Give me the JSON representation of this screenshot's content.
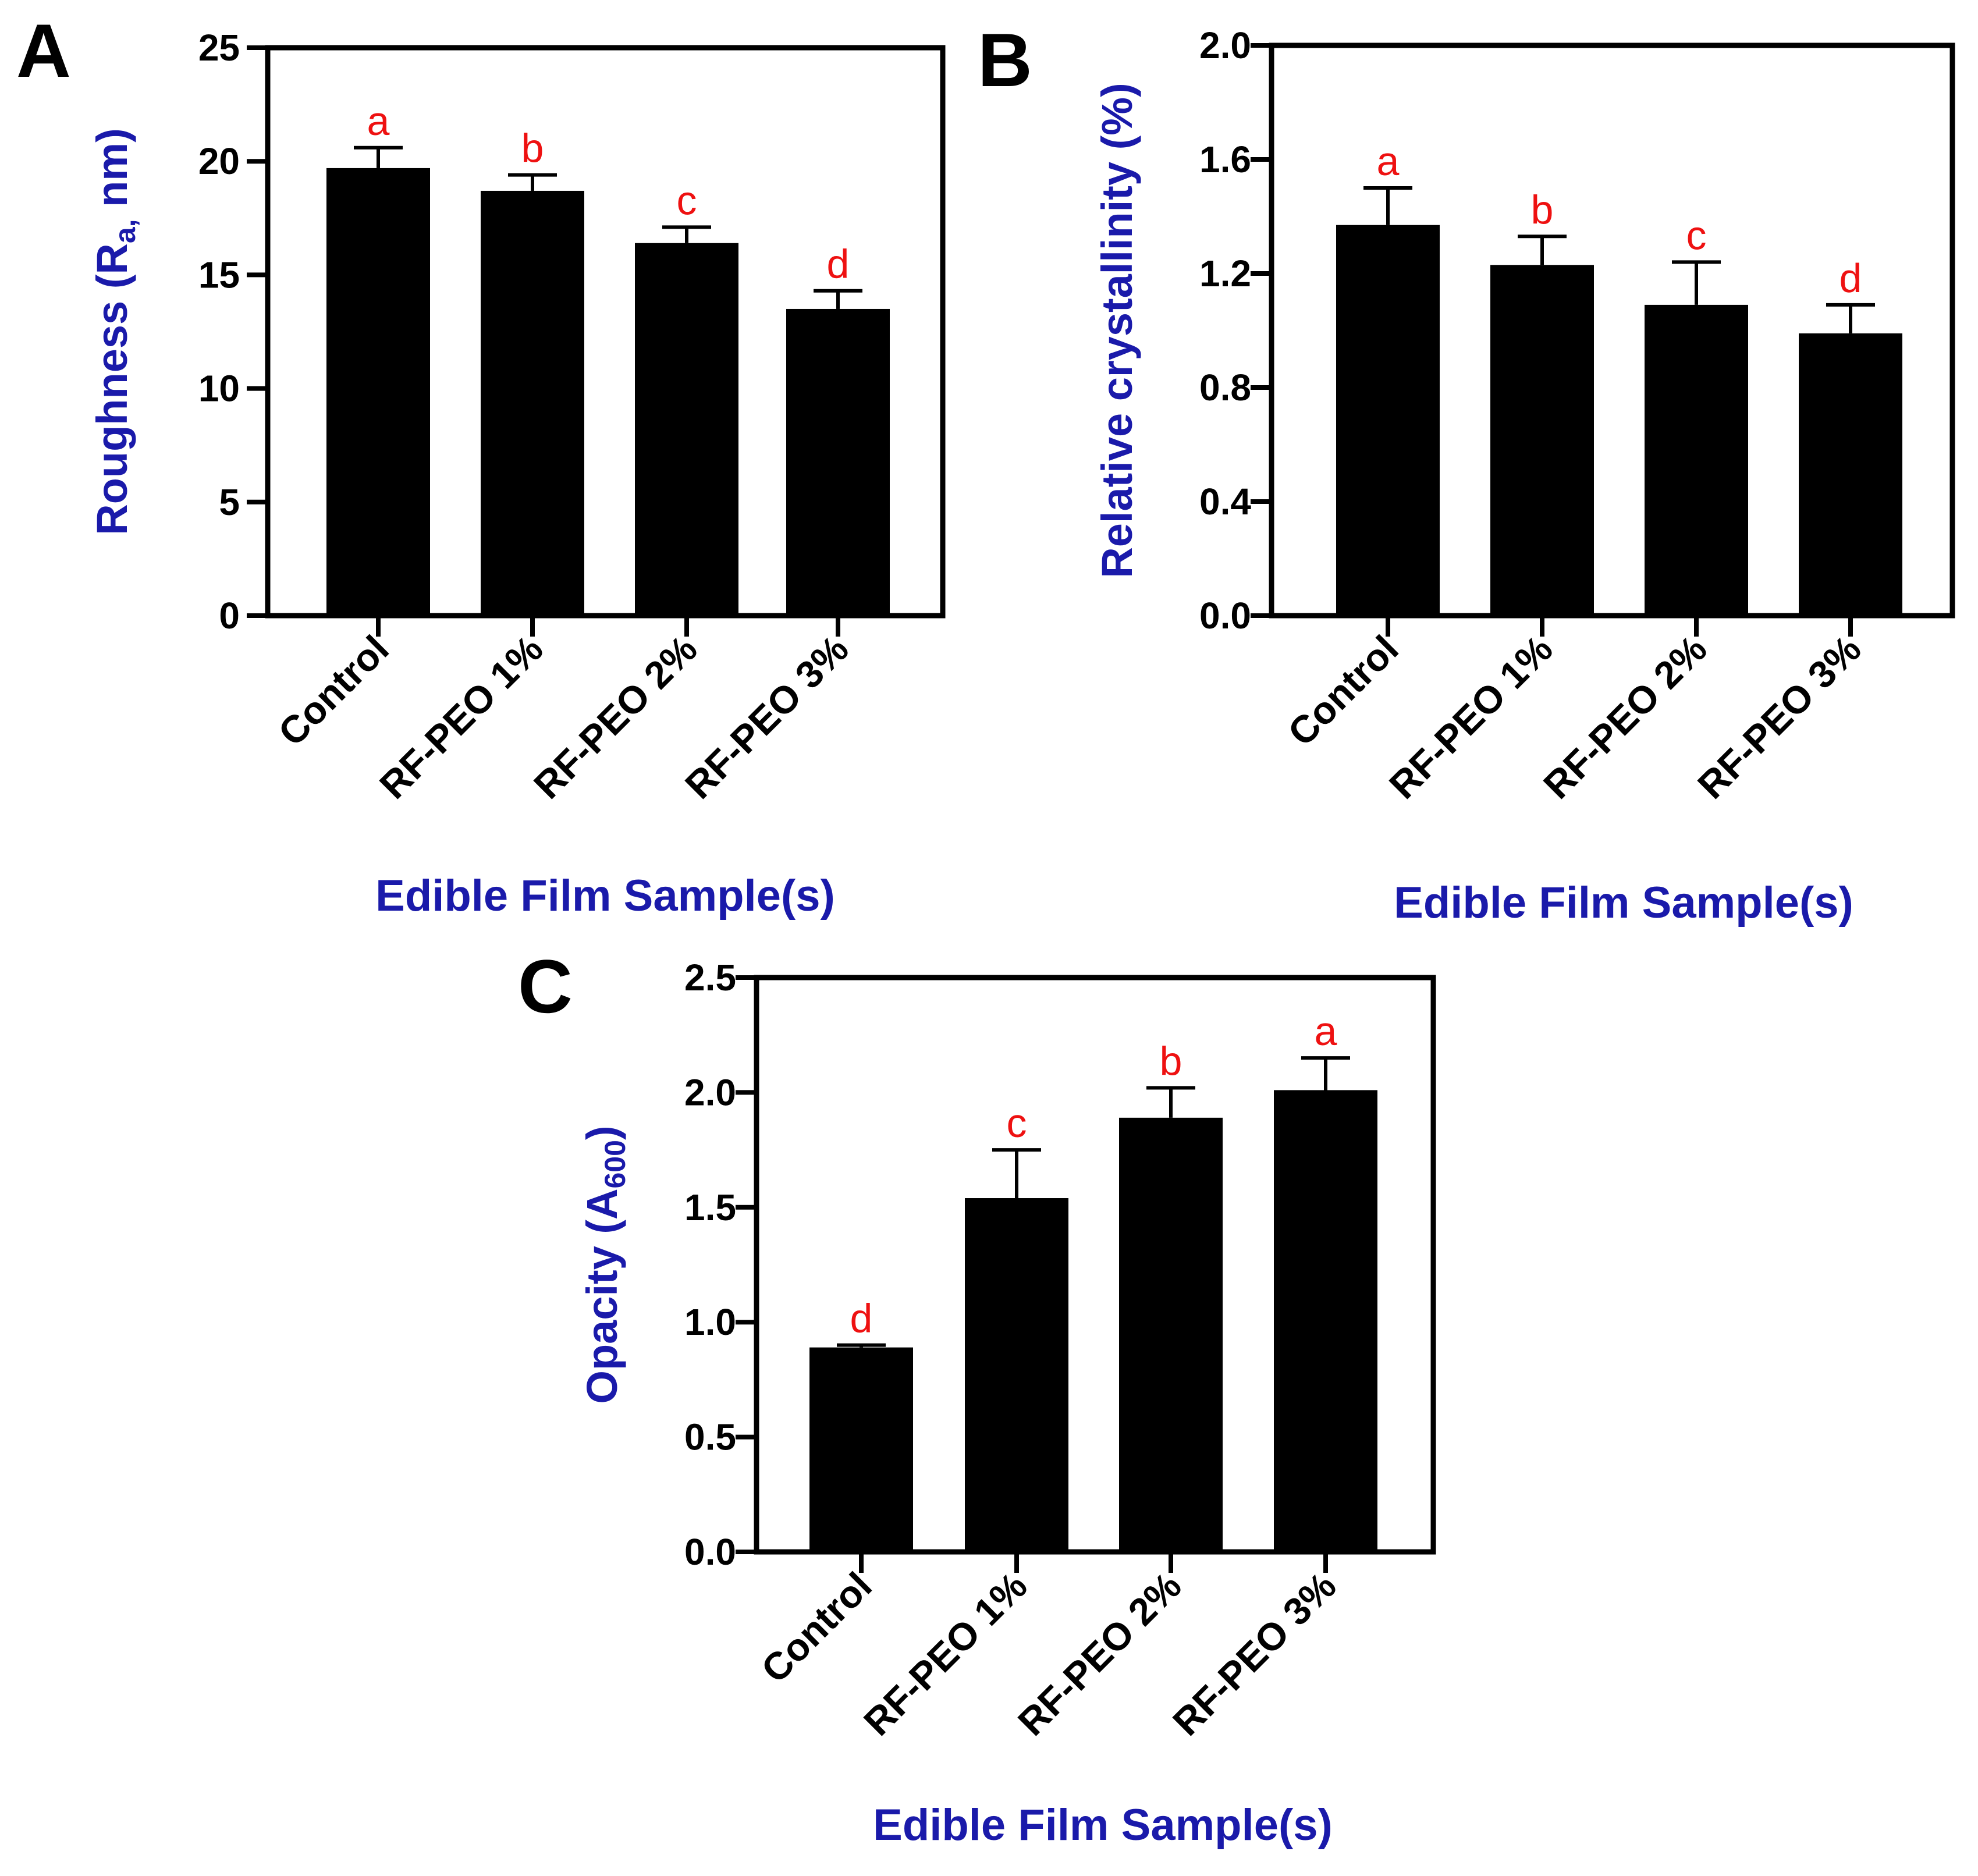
{
  "figure_title": "",
  "chart_data": [
    {
      "id": "A",
      "type": "bar",
      "panel_label": "A",
      "categories": [
        "Control",
        "RF-PEO 1%",
        "RF-PEO 2%",
        "RF-PEO 3%"
      ],
      "values": [
        19.7,
        18.7,
        16.4,
        13.5
      ],
      "errors": [
        0.9,
        0.7,
        0.7,
        0.8
      ],
      "significance": [
        "a",
        "b",
        "c",
        "d"
      ],
      "ylabel": "Roughness (R",
      "ylabel_sub": "a,",
      "ylabel_tail": " nm)",
      "xlabel": "Edible Film Sample(s)",
      "ylim": [
        0,
        25
      ],
      "yticks": [
        0,
        5,
        10,
        15,
        20,
        25
      ],
      "ytick_labels": [
        "0",
        "5",
        "10",
        "15",
        "20",
        "25"
      ]
    },
    {
      "id": "B",
      "type": "bar",
      "panel_label": "B",
      "categories": [
        "Control",
        "RF-PEO 1%",
        "RF-PEO 2%",
        "RF-PEO 3%"
      ],
      "values": [
        1.37,
        1.23,
        1.09,
        0.99
      ],
      "errors": [
        0.13,
        0.1,
        0.15,
        0.1
      ],
      "significance": [
        "a",
        "b",
        "c",
        "d"
      ],
      "ylabel": "Relative crystallinity (%)",
      "ylabel_sub": "",
      "ylabel_tail": "",
      "xlabel": "Edible Film Sample(s)",
      "ylim": [
        0,
        2.0
      ],
      "yticks": [
        0,
        0.4,
        0.8,
        1.2,
        1.6,
        2.0
      ],
      "ytick_labels": [
        "0.0",
        "0.4",
        "0.8",
        "1.2",
        "1.6",
        "2.0"
      ]
    },
    {
      "id": "C",
      "type": "bar",
      "panel_label": "C",
      "categories": [
        "Control",
        "RF-PEO 1%",
        "RF-PEO 2%",
        "RF-PEO 3%"
      ],
      "values": [
        0.89,
        1.54,
        1.89,
        2.01
      ],
      "errors": [
        0.01,
        0.21,
        0.13,
        0.14
      ],
      "significance": [
        "d",
        "c",
        "b",
        "a"
      ],
      "ylabel": "Opacity (A",
      "ylabel_sub": "600",
      "ylabel_tail": ")",
      "xlabel": "Edible Film Sample(s)",
      "ylim": [
        0,
        2.5
      ],
      "yticks": [
        0,
        0.5,
        1.0,
        1.5,
        2.0,
        2.5
      ],
      "ytick_labels": [
        "0.0",
        "0.5",
        "1.0",
        "1.5",
        "2.0",
        "2.5"
      ]
    }
  ]
}
